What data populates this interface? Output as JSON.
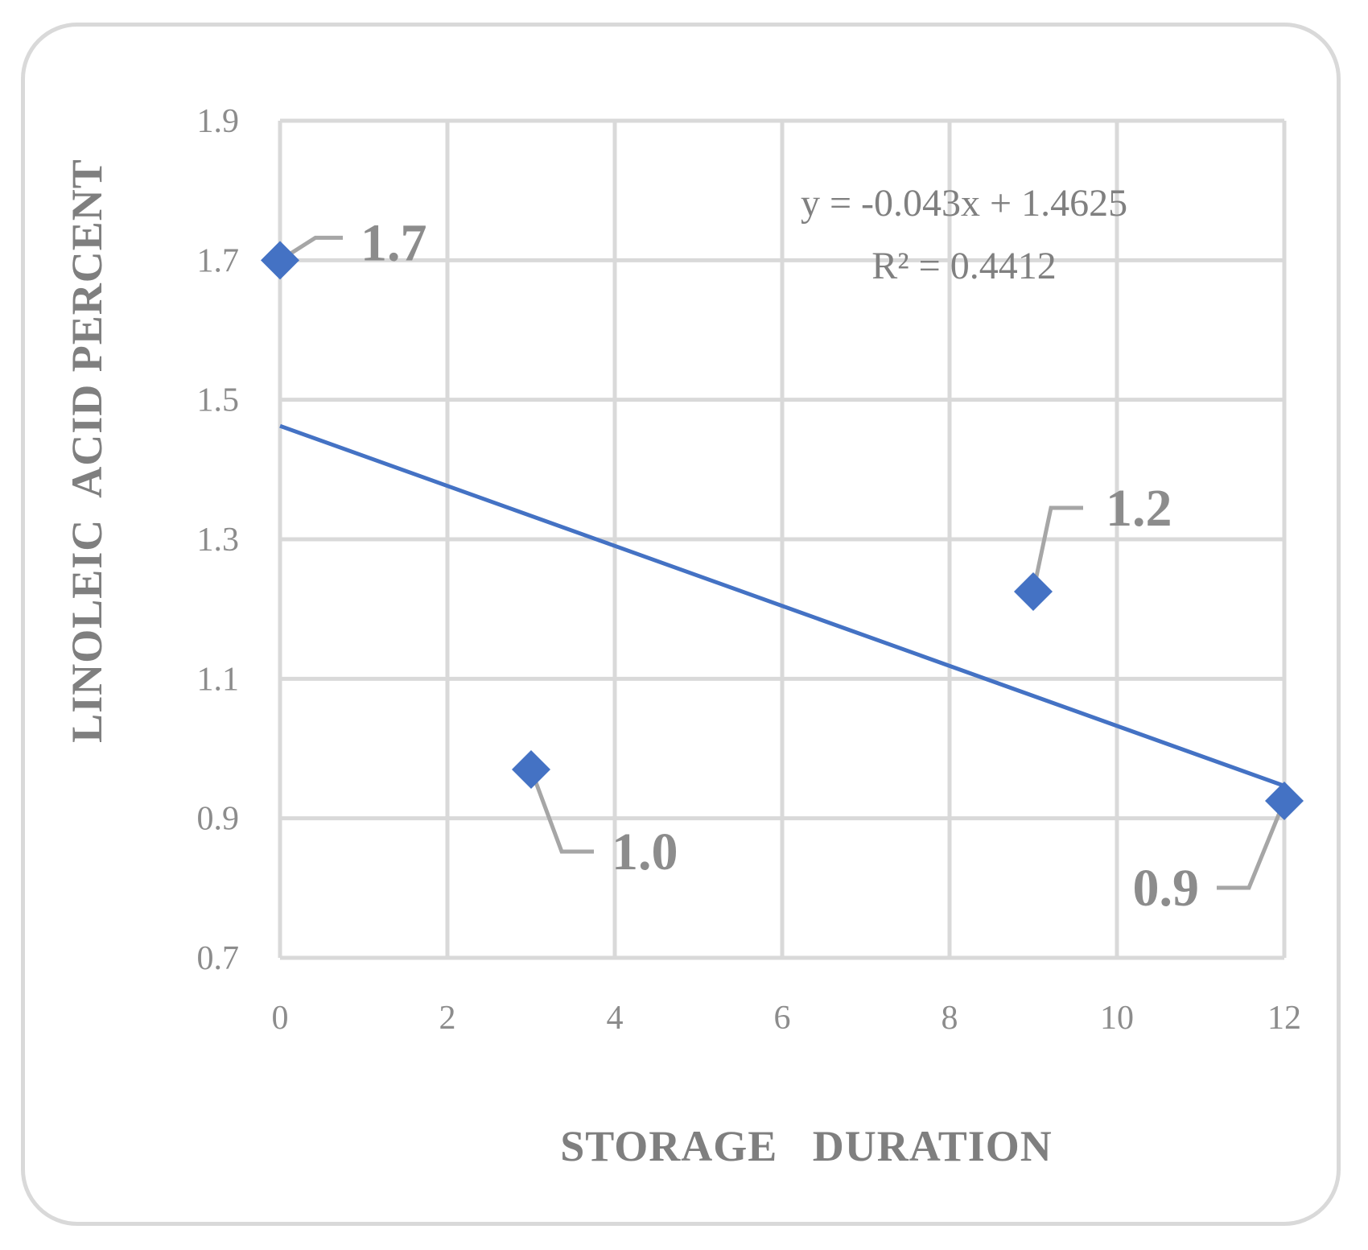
{
  "chart_data": {
    "type": "scatter",
    "xlabel": "STORAGE   DURATION",
    "ylabel": "LINOLEIC  ACID PERCENT",
    "xlim": [
      0,
      12
    ],
    "ylim": [
      0.7,
      1.9
    ],
    "x_ticks": [
      "0",
      "2",
      "4",
      "6",
      "8",
      "10",
      "12"
    ],
    "y_ticks": [
      "0.7",
      "0.9",
      "1.1",
      "1.3",
      "1.5",
      "1.7",
      "1.9"
    ],
    "grid": true,
    "marker": "diamond",
    "series": [
      {
        "points": [
          {
            "x": 0,
            "y": 1.7,
            "label": "1.7"
          },
          {
            "x": 3,
            "y": 0.97,
            "label": "1.0"
          },
          {
            "x": 9,
            "y": 1.225,
            "label": "1.2"
          },
          {
            "x": 12,
            "y": 0.925,
            "label": "0.9"
          }
        ]
      }
    ],
    "trendline": {
      "type": "linear",
      "slope": -0.043,
      "intercept": 1.4625,
      "equation": "y = -0.043x + 1.4625",
      "r_squared": "R² = 0.4412"
    },
    "colors": {
      "marker": "#4472c4",
      "trendline": "#4472c4",
      "grid": "#d9d9d9",
      "leader": "#a6a6a6",
      "text": "#8c8c8c"
    }
  }
}
